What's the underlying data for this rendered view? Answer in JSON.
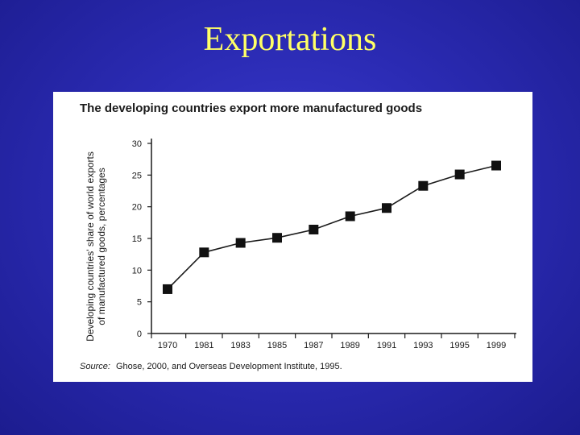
{
  "slide": {
    "title": "Exportations"
  },
  "colors": {
    "background": "#2b2bb4",
    "title": "#ffff66",
    "panel": "#ffffff",
    "ink": "#1a1a1a"
  },
  "chart_data": {
    "type": "line",
    "title": "The developing countries export more manufactured goods",
    "ylabel_lines": [
      "Developing countries' share of world exports",
      "of manufactured goods, percentages"
    ],
    "xlabel": "",
    "categories": [
      "1970",
      "1981",
      "1983",
      "1985",
      "1987",
      "1989",
      "1991",
      "1993",
      "1995",
      "1999"
    ],
    "series": [
      {
        "values": [
          7,
          12.8,
          14.3,
          15.1,
          16.4,
          18.5,
          19.8,
          23.3,
          25.1,
          26.5
        ]
      }
    ],
    "ylim": [
      0,
      30
    ],
    "yticks": [
      0,
      5,
      10,
      15,
      20,
      25,
      30
    ],
    "marker": "square",
    "grid": false,
    "source": {
      "label": "Source:",
      "text": "Ghose, 2000, and Overseas Development Institute, 1995."
    }
  }
}
